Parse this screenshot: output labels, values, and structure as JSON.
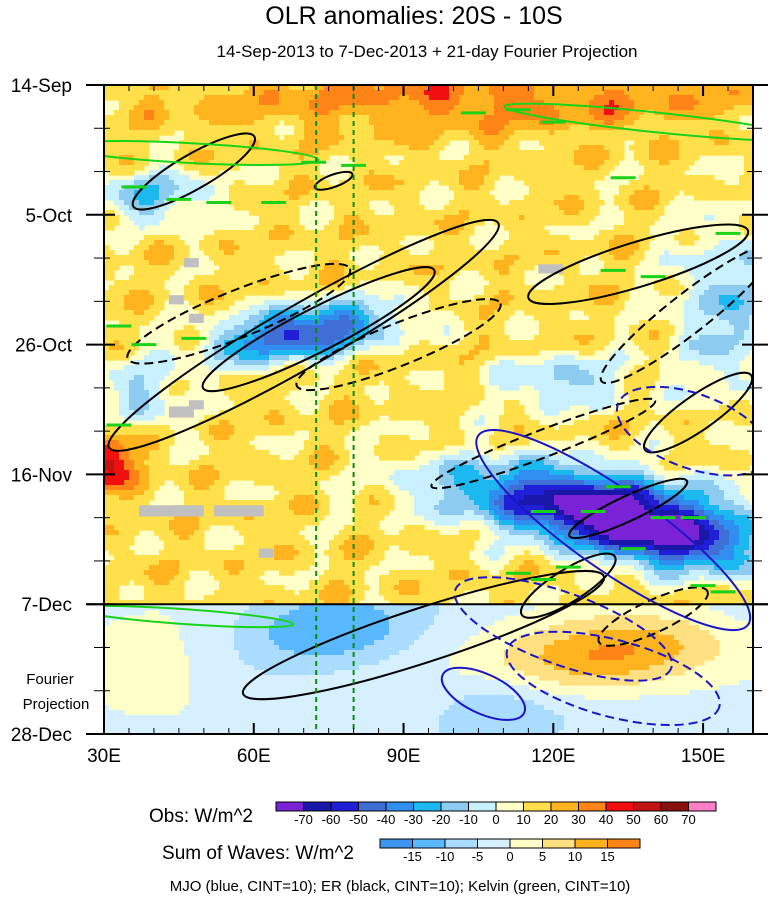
{
  "chart_data": {
    "type": "heatmap",
    "title": "OLR anomalies: 20S - 10S",
    "subtitle": "14-Sep-2013 to 7-Dec-2013 + 21-day Fourier Projection",
    "xlabel": "",
    "ylabel": "",
    "x_range_deg": [
      30,
      160
    ],
    "y_range_days": [
      0,
      105
    ],
    "x_ticks": [
      {
        "value": 30,
        "label": "30E"
      },
      {
        "value": 60,
        "label": "60E"
      },
      {
        "value": 90,
        "label": "90E"
      },
      {
        "value": 120,
        "label": "120E"
      },
      {
        "value": 150,
        "label": "150E"
      }
    ],
    "y_ticks": [
      {
        "day": 0,
        "label": "14-Sep"
      },
      {
        "day": 21,
        "label": "5-Oct"
      },
      {
        "day": 42,
        "label": "26-Oct"
      },
      {
        "day": 63,
        "label": "16-Nov"
      },
      {
        "day": 84,
        "label": "7-Dec"
      },
      {
        "day": 105,
        "label": "28-Dec"
      }
    ],
    "observation_end_day": 84,
    "projection_label": [
      "Fourier",
      "Projection"
    ],
    "reference_longitudes": [
      72.5,
      80
    ],
    "obs_colorbar": {
      "label": "Obs: W/m^2",
      "colors": [
        "#7a22d6",
        "#1a16a8",
        "#1f1fd8",
        "#3f6ed6",
        "#2f8ef0",
        "#1cb8f0",
        "#8ecbf0",
        "#c8f0ff",
        "#ffffc8",
        "#ffe04a",
        "#ffb41f",
        "#ff8418",
        "#f01010",
        "#c41212",
        "#8a1010",
        "#ff7fc6"
      ],
      "ticks": [
        "-70",
        "-60",
        "-50",
        "-40",
        "-30",
        "-20",
        "-10",
        "0",
        "10",
        "20",
        "30",
        "40",
        "50",
        "60",
        "70"
      ]
    },
    "waves_colorbar": {
      "label": "Sum of Waves: W/m^2",
      "colors": [
        "#3c96f0",
        "#5ab8ff",
        "#aadcff",
        "#d6f0ff",
        "#ffffc8",
        "#ffe080",
        "#ffb41f",
        "#ff8418"
      ],
      "ticks": [
        "-15",
        "-10",
        "-5",
        "0",
        "5",
        "10",
        "15"
      ]
    },
    "contour_legend": "MJO (blue, CINT=10); ER (black, CINT=10); Kelvin (green, CINT=10)",
    "contour_series": [
      {
        "name": "MJO",
        "color": "#1a16c8",
        "cint": 10
      },
      {
        "name": "ER",
        "color": "#000000",
        "cint": 10
      },
      {
        "name": "Kelvin",
        "color": "#19d219",
        "cint": 10
      }
    ],
    "missing_value_color": "#c0c0c0"
  }
}
